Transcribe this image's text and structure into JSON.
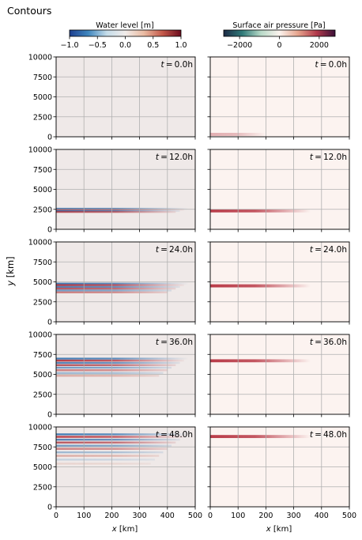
{
  "figure": {
    "title": "Contours",
    "ylabel_text": "y",
    "ylabel_unit": " [km]",
    "xlabel_text": "x",
    "xlabel_unit": " [km]"
  },
  "chart_data": {
    "type": "heatmap",
    "x_range": [
      0,
      500
    ],
    "y_range": [
      0,
      10000
    ],
    "x_ticks": [
      0,
      100,
      200,
      300,
      400,
      500
    ],
    "y_ticks": [
      0,
      2500,
      5000,
      7500,
      10000
    ],
    "grid": true,
    "panel_times": [
      "0.0h",
      "12.0h",
      "24.0h",
      "36.0h",
      "48.0h"
    ],
    "water_level": {
      "colorbar_label": "Water level [m]",
      "range": [
        -1.0,
        1.0
      ],
      "ticks": [
        "−1.0",
        "−0.5",
        "0.0",
        "0.5",
        "1.0"
      ],
      "tick_values": [
        -1.0,
        -0.5,
        0.0,
        0.5,
        1.0
      ],
      "colors": [
        "#1e3f8f",
        "#3f86be",
        "#c4dce9",
        "#f1ecea",
        "#e9bba2",
        "#c4594a",
        "#6b0c1e"
      ],
      "background": "#efe9e8"
    },
    "surface_air_pressure": {
      "colorbar_label": "Surface air pressure [Pa]",
      "range": [
        -2800,
        2800
      ],
      "ticks": [
        "−2000",
        "0",
        "2000"
      ],
      "tick_values": [
        -2000,
        0,
        2000
      ],
      "colors": [
        "#1c2a45",
        "#2f7a78",
        "#b7d9c7",
        "#fbf3ee",
        "#e6a48d",
        "#b23a4b",
        "#3b1038"
      ],
      "background": "#fcf3f0",
      "front_color": "#b5323f",
      "front_y": [
        300,
        2300,
        4500,
        6700,
        8800
      ]
    }
  }
}
